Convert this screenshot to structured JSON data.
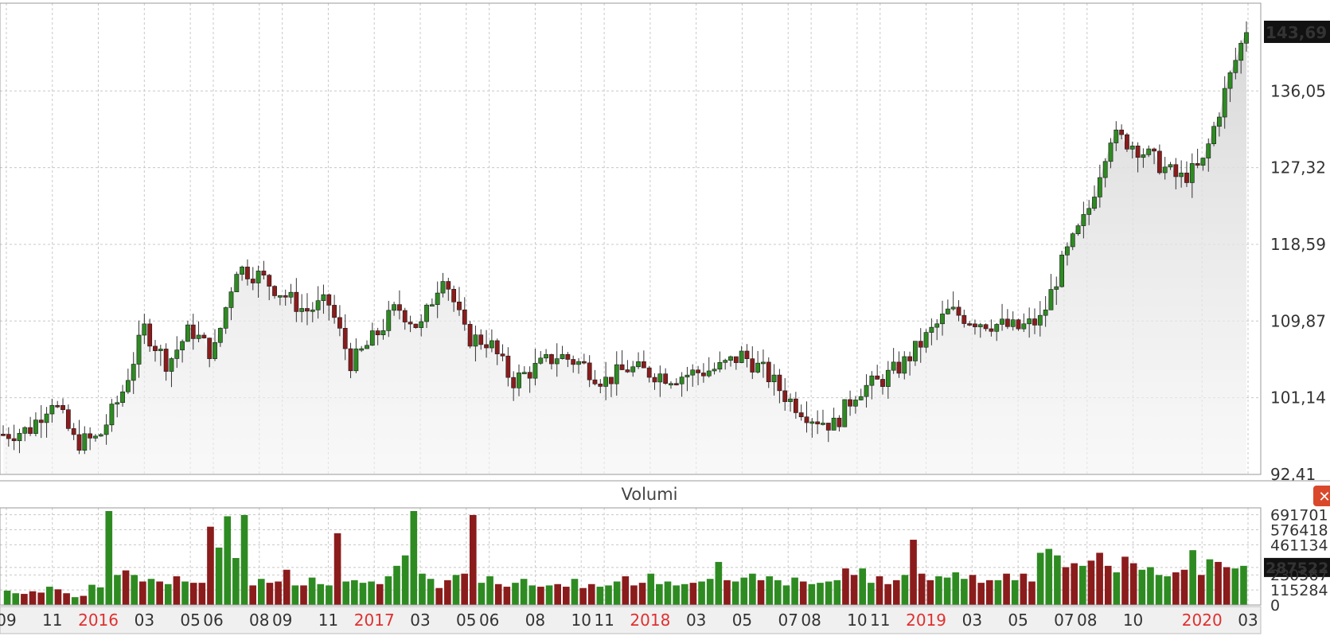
{
  "chart_data": [
    {
      "type": "candlestick",
      "title": "",
      "last_price_label": "143,69",
      "y_ticks": [
        "143,69",
        "136,05",
        "127,32",
        "118,59",
        "109,87",
        "101,14",
        "92,41"
      ],
      "y_tick_values": [
        143.69,
        136.05,
        127.32,
        118.59,
        109.87,
        101.14,
        92.41
      ],
      "ylim": [
        92.41,
        145.5
      ],
      "x_ticks": [
        {
          "label": "09",
          "year": false
        },
        {
          "label": "11",
          "year": false
        },
        {
          "label": "2016",
          "year": true
        },
        {
          "label": "03",
          "year": false
        },
        {
          "label": "05",
          "year": false
        },
        {
          "label": "06",
          "year": false
        },
        {
          "label": "08",
          "year": false
        },
        {
          "label": "09",
          "year": false
        },
        {
          "label": "11",
          "year": false
        },
        {
          "label": "2017",
          "year": true
        },
        {
          "label": "03",
          "year": false
        },
        {
          "label": "05",
          "year": false
        },
        {
          "label": "06",
          "year": false
        },
        {
          "label": "08",
          "year": false
        },
        {
          "label": "10",
          "year": false
        },
        {
          "label": "11",
          "year": false
        },
        {
          "label": "2018",
          "year": true
        },
        {
          "label": "03",
          "year": false
        },
        {
          "label": "05",
          "year": false
        },
        {
          "label": "07",
          "year": false
        },
        {
          "label": "08",
          "year": false
        },
        {
          "label": "10",
          "year": false
        },
        {
          "label": "11",
          "year": false
        },
        {
          "label": "2019",
          "year": true
        },
        {
          "label": "03",
          "year": false
        },
        {
          "label": "05",
          "year": false
        },
        {
          "label": "07",
          "year": false
        },
        {
          "label": "08",
          "year": false
        },
        {
          "label": "10",
          "year": false
        },
        {
          "label": "2020",
          "year": true
        },
        {
          "label": "03",
          "year": false
        }
      ],
      "x_tick_dates": [
        "2015-09",
        "2015-11",
        "2016-01",
        "2016-03",
        "2016-05",
        "2016-06",
        "2016-08",
        "2016-09",
        "2016-11",
        "2017-01",
        "2017-03",
        "2017-05",
        "2017-06",
        "2017-08",
        "2017-10",
        "2017-11",
        "2018-01",
        "2018-03",
        "2018-05",
        "2018-07",
        "2018-08",
        "2018-10",
        "2018-11",
        "2019-01",
        "2019-03",
        "2019-05",
        "2019-07",
        "2019-08",
        "2019-10",
        "2020-01",
        "2020-03"
      ],
      "x_tick_dates_2": [
        "2015-09",
        "2015-11",
        "2016-01",
        "2016-03",
        "2016-05",
        "2016-06",
        "2016-08",
        "2016-09",
        "2016-11",
        "2017-01",
        "2017-03",
        "2017-05",
        "2017-06",
        "2017-08",
        "2017-10",
        "2017-11",
        "2018-01",
        "2018-03",
        "2018-05",
        "2018-07",
        "2018-08",
        "2018-10",
        "2018-11",
        "2019-01",
        "2019-03",
        "2019-05",
        "2019-07",
        "2019-08",
        "2019-10",
        "2020-01",
        "2020-03"
      ],
      "price_points": [
        [
          "2015-09",
          97.0
        ],
        [
          "2015-10",
          97.5
        ],
        [
          "2015-11",
          101.0
        ],
        [
          "2015-12",
          96.0
        ],
        [
          "2016-01",
          96.5
        ],
        [
          "2016-02",
          101.5
        ],
        [
          "2016-03",
          109.0
        ],
        [
          "2016-04",
          105.0
        ],
        [
          "2016-05",
          109.0
        ],
        [
          "2016-06",
          106.0
        ],
        [
          "2016-07",
          116.0
        ],
        [
          "2016-08",
          115.0
        ],
        [
          "2016-09",
          113.0
        ],
        [
          "2016-10",
          111.0
        ],
        [
          "2016-11",
          112.0
        ],
        [
          "2016-12",
          105.0
        ],
        [
          "2017-01",
          108.0
        ],
        [
          "2017-02",
          111.5
        ],
        [
          "2017-03",
          109.0
        ],
        [
          "2017-04",
          115.5
        ],
        [
          "2017-05",
          108.0
        ],
        [
          "2017-06",
          107.5
        ],
        [
          "2017-07",
          103.0
        ],
        [
          "2017-08",
          104.5
        ],
        [
          "2017-09",
          106.0
        ],
        [
          "2017-10",
          105.0
        ],
        [
          "2017-11",
          103.0
        ],
        [
          "2017-12",
          104.5
        ],
        [
          "2018-01",
          104.0
        ],
        [
          "2018-02",
          103.5
        ],
        [
          "2018-03",
          104.0
        ],
        [
          "2018-04",
          104.5
        ],
        [
          "2018-05",
          106.0
        ],
        [
          "2018-06",
          104.0
        ],
        [
          "2018-07",
          101.0
        ],
        [
          "2018-08",
          99.0
        ],
        [
          "2018-09",
          98.0
        ],
        [
          "2018-10",
          102.0
        ],
        [
          "2018-11",
          103.0
        ],
        [
          "2018-12",
          105.0
        ],
        [
          "2019-01",
          108.0
        ],
        [
          "2019-02",
          111.0
        ],
        [
          "2019-03",
          110.0
        ],
        [
          "2019-04",
          109.5
        ],
        [
          "2019-05",
          109.0
        ],
        [
          "2019-06",
          110.0
        ],
        [
          "2019-07",
          117.0
        ],
        [
          "2019-08",
          122.0
        ],
        [
          "2019-09",
          131.0
        ],
        [
          "2019-10",
          130.0
        ],
        [
          "2019-11",
          128.0
        ],
        [
          "2019-12",
          126.0
        ],
        [
          "2020-01",
          127.5
        ],
        [
          "2020-02",
          136.0
        ],
        [
          "2020-03",
          143.69
        ]
      ]
    },
    {
      "type": "bar",
      "title": "Volumi",
      "last_volume_label": "287522",
      "y_ticks": [
        "691701",
        "576418",
        "461134",
        "287522",
        "230567",
        "115284",
        "0"
      ],
      "y_tick_values": [
        691701,
        576418,
        461134,
        287522,
        230567,
        115284,
        0
      ],
      "ylim": [
        0,
        720000
      ],
      "series": [
        {
          "name": "",
          "values": [
            110000,
            90000,
            85000,
            105000,
            95000,
            140000,
            120000,
            90000,
            60000,
            70000,
            155000,
            135000,
            720000,
            230000,
            265000,
            230000,
            180000,
            200000,
            180000,
            160000,
            220000,
            180000,
            170000,
            170000,
            600000,
            440000,
            680000,
            360000,
            690000,
            150000,
            200000,
            170000,
            180000,
            270000,
            150000,
            150000,
            210000,
            160000,
            150000,
            550000,
            180000,
            190000,
            170000,
            180000,
            160000,
            220000,
            300000,
            380000,
            720000,
            240000,
            200000,
            130000,
            190000,
            230000,
            240000,
            690000,
            170000,
            220000,
            160000,
            140000,
            170000,
            200000,
            150000,
            140000,
            150000,
            160000,
            140000,
            200000,
            130000,
            160000,
            140000,
            150000,
            180000,
            220000,
            150000,
            170000,
            240000,
            160000,
            180000,
            150000,
            160000,
            170000,
            180000,
            200000,
            330000,
            190000,
            180000,
            210000,
            240000,
            190000,
            220000,
            190000,
            150000,
            210000,
            180000,
            160000,
            170000,
            180000,
            190000,
            280000,
            230000,
            280000,
            170000,
            220000,
            160000,
            190000,
            230000,
            500000,
            240000,
            190000,
            220000,
            210000,
            250000,
            200000,
            230000,
            170000,
            190000,
            190000,
            240000,
            190000,
            240000,
            180000,
            400000,
            430000,
            380000,
            290000,
            320000,
            300000,
            340000,
            400000,
            300000,
            250000,
            370000,
            320000,
            270000,
            290000,
            230000,
            220000,
            250000,
            270000,
            420000,
            230000,
            350000,
            330000,
            290000,
            280000,
            300000
          ]
        }
      ],
      "colors": {
        "up": "#2e8b22",
        "down": "#8b1c1c"
      }
    }
  ],
  "panel": {
    "close_glyph": "✕"
  }
}
